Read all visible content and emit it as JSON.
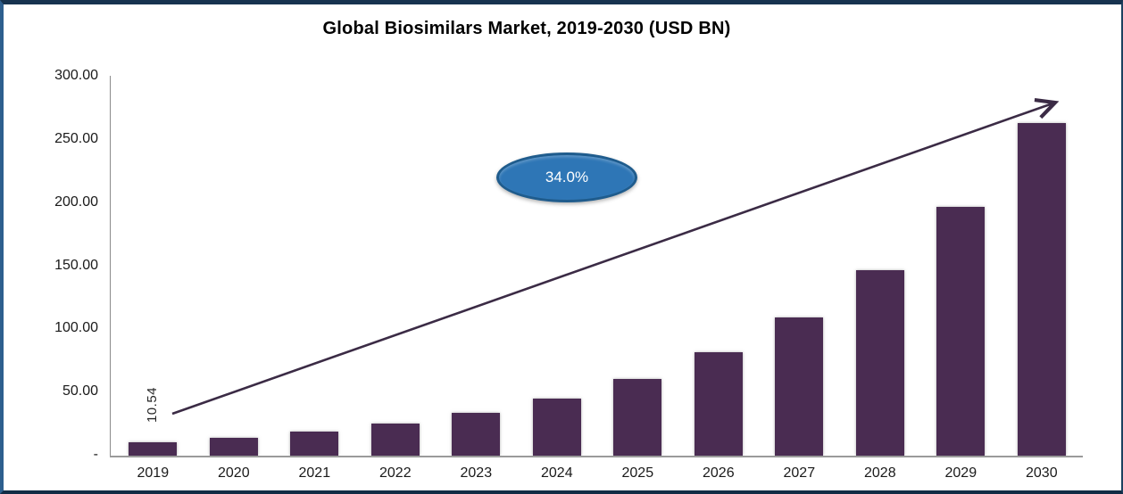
{
  "header": {
    "title": "Global Biosimilars Market, 2019-2030 (USD BN)"
  },
  "annotation": {
    "cagr": "34.0%"
  },
  "first_bar_label": "10.54",
  "chart_data": {
    "type": "bar",
    "title": "Global Biosimilars Market, 2019-2030 (USD BN)",
    "categories": [
      "2019",
      "2020",
      "2021",
      "2022",
      "2023",
      "2024",
      "2025",
      "2026",
      "2027",
      "2028",
      "2029",
      "2030"
    ],
    "values": [
      10.54,
      14.1,
      18.9,
      25.4,
      34.0,
      45.5,
      61.0,
      81.8,
      109.6,
      146.8,
      196.7,
      263.6
    ],
    "bar_labels": {
      "2019": "10.54"
    },
    "annotations": [
      {
        "shape": "ellipse",
        "text": "34.0%"
      },
      {
        "shape": "trend-arrow"
      }
    ],
    "xlabel": "",
    "ylabel": "",
    "ylim": [
      0,
      300
    ],
    "y_ticks": [
      {
        "label": "300.00",
        "value": 300
      },
      {
        "label": "250.00",
        "value": 250
      },
      {
        "label": "200.00",
        "value": 200
      },
      {
        "label": "150.00",
        "value": 150
      },
      {
        "label": "100.00",
        "value": 100
      },
      {
        "label": "50.00",
        "value": 50
      },
      {
        "label": "-",
        "value": 0
      }
    ],
    "grid": false,
    "legend": false,
    "colors": {
      "bar": "#4a2c52",
      "arrow": "#3b2b45",
      "ellipse_fill": "#2e76b6",
      "ellipse_border": "#1f5c8d",
      "frame_top_bottom": "#17334f",
      "frame_sides": "#2d5f8e",
      "axis_line": "#8c8c8c",
      "text": "#1a1a1a"
    }
  }
}
